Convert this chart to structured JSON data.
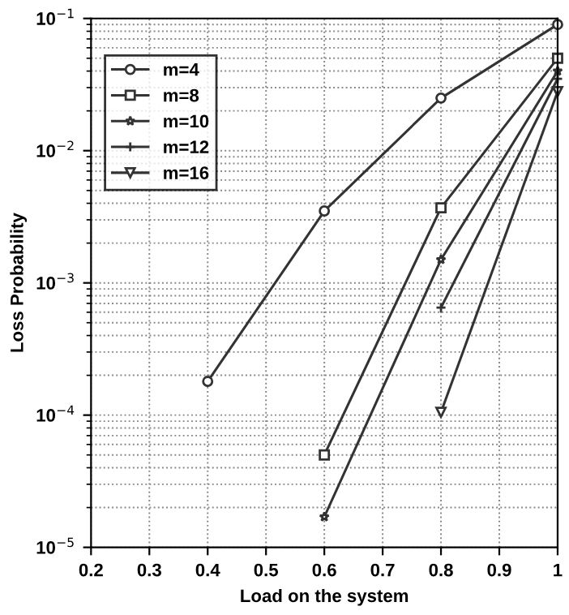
{
  "chart_data": {
    "type": "line",
    "xlabel": "Load on the system",
    "ylabel": "Loss Probability",
    "log": "y",
    "grid": true,
    "legend": "top left",
    "xlim": [
      0.2,
      1
    ],
    "xticks": [
      0.2,
      0.3,
      0.4,
      0.5,
      0.6,
      0.7,
      0.8,
      0.9,
      1
    ],
    "ylim": [
      1e-05,
      0.1
    ],
    "yticks": [
      {
        "value": 1e-05,
        "label": "10$^{−5}$"
      },
      {
        "value": 0.0001,
        "label": "10$^{−4}$"
      },
      {
        "value": 0.001,
        "label": "10$^{−3}$"
      },
      {
        "value": 0.01,
        "label": "10$^{−2}$"
      },
      {
        "value": 0.1,
        "label": "10$^{−1}$"
      }
    ],
    "series": [
      {
        "name": "m=4",
        "color": "#333333",
        "marker": "circle",
        "x": [
          0.4,
          0.6,
          0.8,
          1.0
        ],
        "values": [
          0.00018,
          0.0035,
          0.025,
          0.09
        ]
      },
      {
        "name": "m=8",
        "color": "#333333",
        "marker": "square",
        "x": [
          0.6,
          0.8,
          1.0
        ],
        "values": [
          5e-05,
          0.0037,
          0.05
        ]
      },
      {
        "name": "m=10",
        "color": "#333333",
        "marker": "star",
        "x": [
          0.6,
          0.8,
          1.0
        ],
        "values": [
          1.7e-05,
          0.0015,
          0.04
        ]
      },
      {
        "name": "m=12",
        "color": "#333333",
        "marker": "cross",
        "x": [
          0.8,
          1.0
        ],
        "values": [
          0.00065,
          0.035
        ]
      },
      {
        "name": "m=16",
        "color": "#333333",
        "marker": "triangle",
        "x": [
          0.8,
          1.0
        ],
        "values": [
          0.000105,
          0.028
        ]
      }
    ]
  }
}
